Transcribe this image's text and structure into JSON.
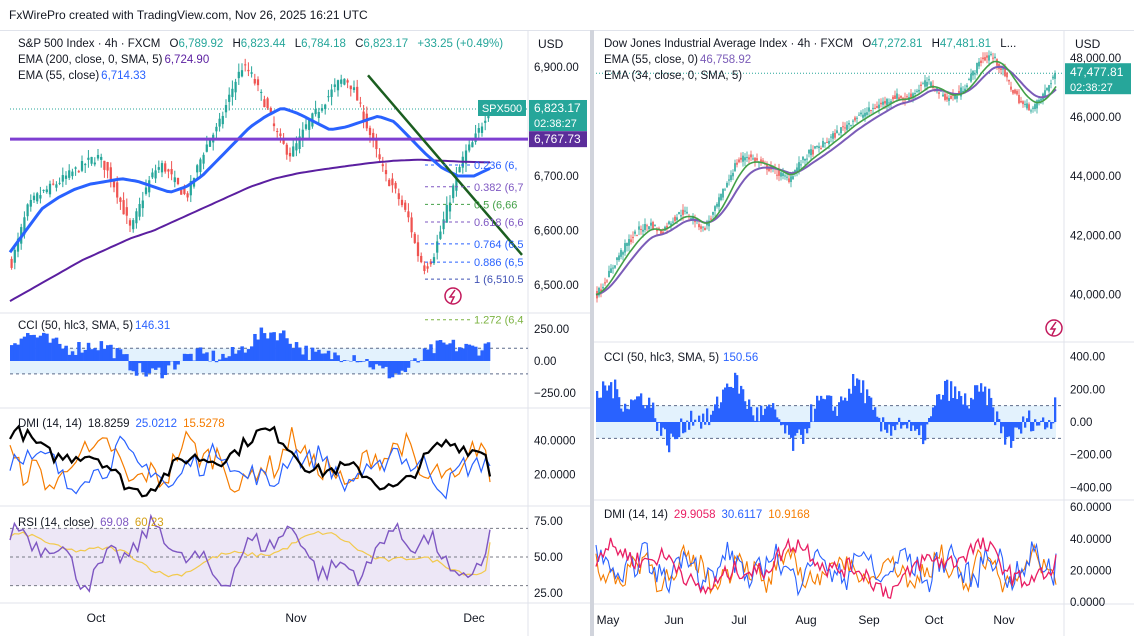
{
  "header": {
    "text": "FxWirePro created with TradingView.com, Nov 26, 2025 16:21 UTC"
  },
  "colors": {
    "ema_fast_left": "#2962ff",
    "ema_slow_left": "#5b1fa0",
    "purple_line": "#7e3fd1",
    "trend_line": "#1b5e20",
    "cci": "#2962ff",
    "dmi_adx": "#000000",
    "dmi_plus": "#2962ff",
    "dmi_minus": "#f57c00",
    "rsi": "#7e57c2",
    "rsi_ma": "#f2c94c",
    "up": "#26a69a",
    "down": "#ef5350",
    "dji_ema55": "#7b5cb8",
    "dji_ema34": "#43a047",
    "dji_plus": "#2962ff",
    "dji_minus": "#f57c00",
    "dji_adx": "#e91e63"
  },
  "left": {
    "currency": "USD",
    "title": {
      "name": "S&P 500 Index · 4h · FXCM",
      "o_label": "O",
      "o": "6,789.92",
      "h_label": "H",
      "h": "6,823.44",
      "l_label": "L",
      "l": "6,784.18",
      "c_label": "C",
      "c": "6,823.17",
      "change": "+33.25 (+0.49%)"
    },
    "ema200": {
      "label": "EMA (200, close, 0, SMA, 5)",
      "value": "6,724.90"
    },
    "ema55": {
      "label": "EMA (55, close)",
      "value": "6,714.33"
    },
    "price_axis": [
      "6,900.00",
      "6,800.00",
      "6,700.00",
      "6,600.00",
      "6,500.00"
    ],
    "symbol_tag": "SPX500",
    "last_price": "6,823.17",
    "countdown": "02:38:27",
    "level_tag": "6,767.73",
    "fib": [
      {
        "label": "0.236 (6,",
        "color": "#2962ff"
      },
      {
        "label": "0.382 (6,7",
        "color": "#7e57c2"
      },
      {
        "label": "0.5 (6,66",
        "color": "#43a047"
      },
      {
        "label": "0.618 (6,6",
        "color": "#7e57c2"
      },
      {
        "label": "0.764 (6,5",
        "color": "#2962ff"
      },
      {
        "label": "0.886 (6,5",
        "color": "#2962ff"
      },
      {
        "label": "1 (6,510.5",
        "color": "#3f51b5"
      },
      {
        "label": "1.272 (6,4",
        "color": "#7cb342"
      }
    ],
    "cci": {
      "label": "CCI (50, hlc3, SMA, 5)",
      "value": "146.31",
      "axis": [
        "250.00",
        "0.00",
        "−250.00"
      ]
    },
    "dmi": {
      "label": "DMI (14, 14)",
      "v1": "18.8259",
      "v2": "25.0212",
      "v3": "15.5278",
      "axis": [
        "40.0000",
        "20.0000"
      ]
    },
    "rsi": {
      "label": "RSI (14, close)",
      "v1": "69.08",
      "v2": "60.23",
      "axis": [
        "75.00",
        "50.00",
        "25.00"
      ]
    },
    "time_axis": [
      "Oct",
      "Nov",
      "Dec"
    ]
  },
  "right": {
    "currency": "USD",
    "title": {
      "name": "Dow Jones Industrial Average Index · 4h · FXCM",
      "o_label": "O",
      "o": "47,272.81",
      "h_label": "H",
      "h": "47,481.81",
      "rest": "L..."
    },
    "ema55": {
      "label": "EMA (55, close, 0)",
      "value": "46,758.92"
    },
    "ema34": {
      "label": "EMA (34, close, 0, SMA, 5)",
      "value": ""
    },
    "price_axis": [
      "48,000.00",
      "46,000.00",
      "44,000.00",
      "42,000.00",
      "40,000.00"
    ],
    "last_price": "47,477.81",
    "countdown": "02:38:27",
    "cci": {
      "label": "CCI (50, hlc3, SMA, 5)",
      "value": "150.56",
      "axis": [
        "400.00",
        "200.00",
        "0.00",
        "−200.00",
        "−400.00"
      ]
    },
    "dmi": {
      "label": "DMI (14, 14)",
      "v1": "29.9058",
      "v2": "30.6117",
      "v3": "10.9168",
      "axis": [
        "60.0000",
        "40.0000",
        "20.0000",
        "0.0000"
      ]
    },
    "time_axis": [
      "May",
      "Jun",
      "Jul",
      "Aug",
      "Sep",
      "Oct",
      "Nov"
    ]
  },
  "chart_data": [
    {
      "type": "candlestick",
      "title": "S&P 500 Index · 4h · FXCM",
      "ylim": [
        6450,
        6950
      ],
      "x": [
        "Oct",
        "Nov",
        "Dec"
      ],
      "price_path": [
        6540,
        6590,
        6640,
        6660,
        6670,
        6680,
        6690,
        6700,
        6710,
        6720,
        6730,
        6735,
        6710,
        6680,
        6640,
        6600,
        6640,
        6680,
        6710,
        6720,
        6700,
        6680,
        6660,
        6700,
        6740,
        6770,
        6790,
        6830,
        6870,
        6900,
        6890,
        6860,
        6830,
        6790,
        6760,
        6740,
        6760,
        6790,
        6810,
        6830,
        6850,
        6870,
        6880,
        6860,
        6820,
        6780,
        6740,
        6700,
        6680,
        6650,
        6620,
        6560,
        6530,
        6550,
        6600,
        6650,
        6700,
        6740,
        6760,
        6790,
        6823
      ],
      "ema55_path": [
        6560,
        6600,
        6640,
        6660,
        6675,
        6685,
        6690,
        6695,
        6690,
        6680,
        6670,
        6680,
        6700,
        6730,
        6760,
        6790,
        6810,
        6825,
        6815,
        6800,
        6785,
        6790,
        6800,
        6810,
        6800,
        6770,
        6740,
        6715,
        6700,
        6700,
        6714
      ],
      "ema200_path": [
        6470,
        6495,
        6520,
        6545,
        6565,
        6585,
        6600,
        6620,
        6640,
        6660,
        6680,
        6695,
        6705,
        6712,
        6718,
        6724,
        6728,
        6730,
        6728,
        6726,
        6725
      ],
      "horizontal_level": 6767.73,
      "last_price": 6823.17,
      "fib_levels": [
        0.236,
        0.382,
        0.5,
        0.618,
        0.764,
        0.886,
        1,
        1.272
      ],
      "cci": {
        "ylim": [
          -320,
          320
        ],
        "bands": [
          100,
          -100
        ],
        "last": 146.31
      },
      "dmi": {
        "ylim": [
          5,
          55
        ],
        "adx_last": 18.8259,
        "plus_last": 25.0212,
        "minus_last": 15.5278
      },
      "rsi": {
        "ylim": [
          20,
          80
        ],
        "bands": [
          70,
          30
        ],
        "last": 69.08,
        "ma_last": 60.23
      }
    },
    {
      "type": "candlestick",
      "title": "Dow Jones Industrial Average Index · 4h · FXCM",
      "ylim": [
        38600,
        48600
      ],
      "x": [
        "May",
        "Jun",
        "Jul",
        "Aug",
        "Sep",
        "Oct",
        "Nov"
      ],
      "price_path": [
        40000,
        40600,
        41300,
        41800,
        42200,
        42400,
        42100,
        42500,
        42800,
        42600,
        42200,
        42800,
        43600,
        44400,
        44700,
        44500,
        44300,
        44100,
        43900,
        44400,
        44800,
        45000,
        45300,
        45600,
        45900,
        46100,
        46300,
        46500,
        46700,
        46600,
        46900,
        47200,
        46900,
        46600,
        46800,
        47300,
        47900,
        48100,
        47600,
        46900,
        46400,
        46300,
        46800,
        47478
      ],
      "last_price": 47477.81,
      "cci": {
        "ylim": [
          -440,
          440
        ],
        "bands": [
          100,
          -100
        ],
        "last": 150.56
      },
      "dmi": {
        "ylim": [
          0,
          62
        ],
        "adx_last": 29.9058,
        "plus_last": 30.6117,
        "minus_last": 10.9168
      }
    }
  ]
}
